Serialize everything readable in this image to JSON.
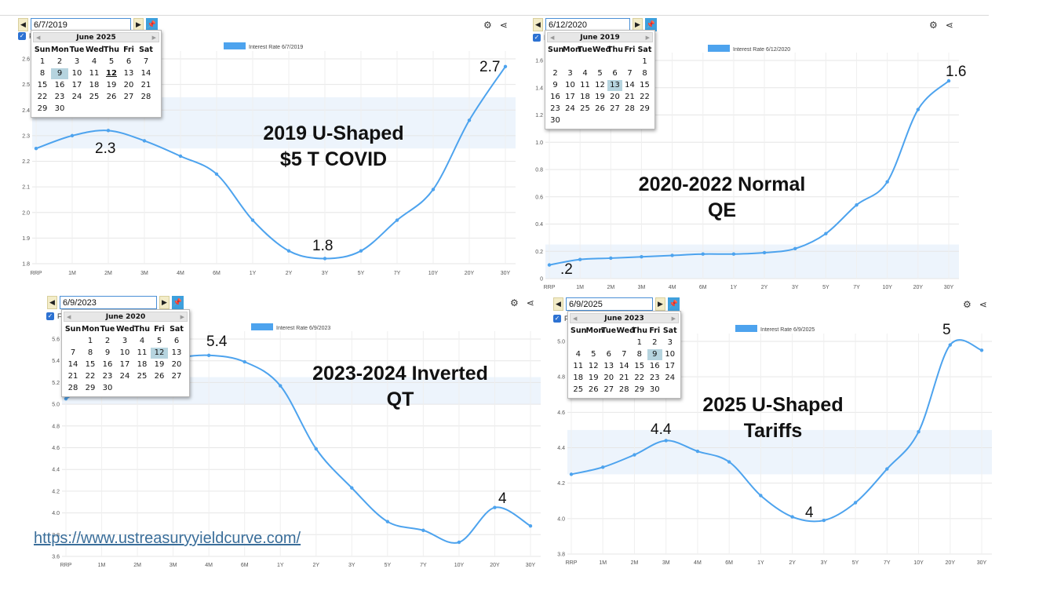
{
  "link_text": "https://www.ustreasuryyieldcurve.com/",
  "panels": [
    {
      "date_value": "6/7/2019",
      "legend": "Interest Rate 6/7/2019",
      "calendar": {
        "month": "June 2025",
        "days": [
          "Sun",
          "Mon",
          "Tue",
          "Wed",
          "Thu",
          "Fri",
          "Sat"
        ],
        "start": 0,
        "count": 30,
        "selected": 9,
        "today": 12
      },
      "annotations": [
        "2.7",
        "2.3",
        "1.8"
      ],
      "headline": [
        "2019 U-Shaped",
        "$5 T COVID"
      ],
      "checkbox_label": "F"
    },
    {
      "date_value": "6/12/2020",
      "legend": "Interest Rate 6/12/2020",
      "calendar": {
        "month": "June 2019",
        "days": [
          "Sun",
          "Mon",
          "Tue",
          "Wed",
          "Thu",
          "Fri",
          "Sat"
        ],
        "start": 6,
        "count": 30,
        "selected": 13,
        "today": null
      },
      "annotations": [
        "1.6",
        ".2"
      ],
      "headline": [
        "2020-2022 Normal",
        "QE"
      ],
      "checkbox_label": "F"
    },
    {
      "date_value": "6/9/2023",
      "legend": "Interest Rate 6/9/2023",
      "calendar": {
        "month": "June 2020",
        "days": [
          "Sun",
          "Mon",
          "Tue",
          "Wed",
          "Thu",
          "Fri",
          "Sat"
        ],
        "start": 1,
        "count": 30,
        "selected": 12,
        "today": null
      },
      "annotations": [
        "5.4",
        "4"
      ],
      "headline": [
        "2023-2024 Inverted",
        "QT"
      ],
      "checkbox_label": "F"
    },
    {
      "date_value": "6/9/2025",
      "legend": "Interest Rate 6/9/2025",
      "calendar": {
        "month": "June 2023",
        "days": [
          "Sun",
          "Mon",
          "Tue",
          "Wed",
          "Thu",
          "Fri",
          "Sat"
        ],
        "start": 4,
        "count": 30,
        "selected": 9,
        "today": null
      },
      "annotations": [
        "5",
        "4.4",
        "4"
      ],
      "headline": [
        "2025 U-Shaped",
        "Tariffs"
      ],
      "checkbox_label": "F"
    }
  ],
  "chart_data": [
    {
      "type": "line",
      "x": [
        "RRP",
        "1M",
        "2M",
        "3M",
        "4M",
        "6M",
        "1Y",
        "2Y",
        "3Y",
        "5Y",
        "7Y",
        "10Y",
        "20Y",
        "30Y"
      ],
      "series": [
        {
          "name": "Interest Rate 6/7/2019",
          "values": [
            2.25,
            2.3,
            2.32,
            2.28,
            2.22,
            2.15,
            1.97,
            1.85,
            1.82,
            1.85,
            1.97,
            2.09,
            2.36,
            2.57
          ]
        }
      ],
      "yticks": [
        "1.8",
        "1.9",
        "2.0",
        "2.1",
        "2.2",
        "2.3",
        "2.4",
        "2.5",
        "2.6"
      ],
      "ylim": [
        1.8,
        2.6
      ],
      "band": [
        2.25,
        2.45
      ],
      "color": "#4da3ee"
    },
    {
      "type": "line",
      "x": [
        "RRP",
        "1M",
        "2M",
        "3M",
        "4M",
        "6M",
        "1Y",
        "2Y",
        "3Y",
        "5Y",
        "7Y",
        "10Y",
        "20Y",
        "30Y"
      ],
      "series": [
        {
          "name": "Interest Rate 6/12/2020",
          "values": [
            0.1,
            0.14,
            0.15,
            0.16,
            0.17,
            0.18,
            0.18,
            0.19,
            0.22,
            0.33,
            0.54,
            0.71,
            1.24,
            1.45
          ]
        }
      ],
      "yticks": [
        "0",
        "0.2",
        "0.4",
        "0.6",
        "0.8",
        "1.0",
        "1.2",
        "1.4",
        "1.6"
      ],
      "ylim": [
        0,
        1.6
      ],
      "band": [
        0.0,
        0.25
      ],
      "color": "#4da3ee"
    },
    {
      "type": "line",
      "x": [
        "RRP",
        "1M",
        "2M",
        "3M",
        "4M",
        "6M",
        "1Y",
        "2Y",
        "3Y",
        "5Y",
        "7Y",
        "10Y",
        "20Y",
        "30Y"
      ],
      "series": [
        {
          "name": "Interest Rate 6/9/2023",
          "values": [
            5.05,
            5.25,
            5.33,
            5.42,
            5.45,
            5.39,
            5.17,
            4.59,
            4.23,
            3.92,
            3.84,
            3.73,
            4.05,
            3.88
          ]
        }
      ],
      "yticks": [
        "3.6",
        "3.8",
        "4.0",
        "4.2",
        "4.4",
        "4.6",
        "4.8",
        "5.0",
        "5.2",
        "5.4",
        "5.6"
      ],
      "ylim": [
        3.6,
        5.6
      ],
      "band": [
        5.0,
        5.25
      ],
      "color": "#4da3ee"
    },
    {
      "type": "line",
      "x": [
        "RRP",
        "1M",
        "2M",
        "3M",
        "4M",
        "6M",
        "1Y",
        "2Y",
        "3Y",
        "5Y",
        "7Y",
        "10Y",
        "20Y",
        "30Y"
      ],
      "series": [
        {
          "name": "Interest Rate 6/9/2025",
          "values": [
            4.25,
            4.29,
            4.36,
            4.44,
            4.38,
            4.32,
            4.13,
            4.01,
            3.99,
            4.09,
            4.28,
            4.49,
            4.98,
            4.95
          ]
        }
      ],
      "yticks": [
        "3.8",
        "4.0",
        "4.2",
        "4.4",
        "4.6",
        "4.8",
        "5.0"
      ],
      "ylim": [
        3.8,
        5.0
      ],
      "band": [
        4.25,
        4.5
      ],
      "color": "#4da3ee"
    }
  ]
}
